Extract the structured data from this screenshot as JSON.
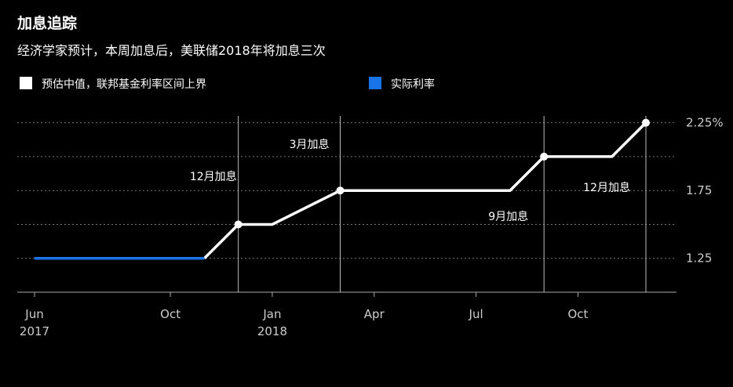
{
  "chart_data": {
    "type": "line",
    "title": "加息追踪",
    "subtitle": "经济学家预计，本周加息后，美联储2018年将加息三次",
    "series": [
      {
        "name": "预估中值，联邦基金利率区间上界",
        "color": "#ffffff",
        "x": [
          "2017-11",
          "2017-12",
          "2018-01",
          "2018-03",
          "2018-08",
          "2018-09",
          "2018-11",
          "2018-12"
        ],
        "values": [
          1.25,
          1.5,
          1.5,
          1.75,
          1.75,
          2.0,
          2.0,
          2.25
        ]
      },
      {
        "name": "实际利率",
        "color": "#1a74e8",
        "x": [
          "2017-06",
          "2017-11"
        ],
        "values": [
          1.25,
          1.25
        ]
      }
    ],
    "annotations": [
      {
        "text": "12月加息",
        "x": "2017-12"
      },
      {
        "text": "3月加息",
        "x": "2018-03"
      },
      {
        "text": "9月加息",
        "x": "2018-09"
      },
      {
        "text": "12月加息",
        "x": "2018-12"
      }
    ],
    "xlim": [
      "2017-06",
      "2018-12"
    ],
    "xticks": [
      {
        "value": "2017-06",
        "label": "Jun",
        "year": "2017"
      },
      {
        "value": "2017-10",
        "label": "Oct"
      },
      {
        "value": "2018-01",
        "label": "Jan",
        "year": "2018"
      },
      {
        "value": "2018-04",
        "label": "Apr"
      },
      {
        "value": "2018-07",
        "label": "Jul"
      },
      {
        "value": "2018-10",
        "label": "Oct"
      }
    ],
    "ylim": [
      1.0,
      2.3
    ],
    "yticks": [
      1.25,
      1.75,
      {
        "value": 2.25,
        "label": "2.25%"
      }
    ],
    "minor_gridlines": [
      1.5,
      2.0
    ],
    "grid": true
  }
}
